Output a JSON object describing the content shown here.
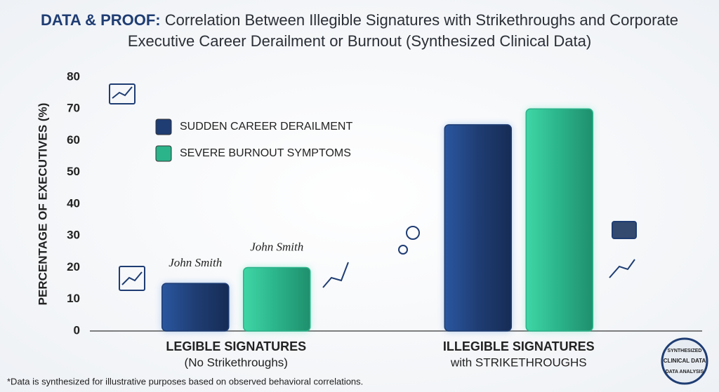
{
  "chart_data": {
    "type": "bar",
    "title_lead": "DATA & PROOF:",
    "title": "Correlation Between Illegible Signatures with Strikethroughs and Corporate Executive Career Derailment or Burnout (Synthesized Clinical Data)",
    "y_label": "PERCENTAGE OF EXECUTIVES (%)",
    "categories": [
      "LEGIBLE SIGNATURES",
      "ILLEGIBLE SIGNATURES"
    ],
    "category_sublabels": [
      "(No Strikethroughs)",
      "with STRIKETHROUGHS"
    ],
    "series": [
      {
        "name": "SUDDEN CAREER DERAILMENT",
        "color": "#1f3d73",
        "values": [
          15,
          65
        ]
      },
      {
        "name": "SEVERE BURNOUT SYMPTOMS",
        "color": "#2bb38a",
        "values": [
          20,
          70
        ]
      }
    ],
    "ylim": [
      0,
      80
    ],
    "yticks": [
      0,
      10,
      20,
      30,
      40,
      50,
      60,
      70,
      80
    ],
    "grid": false,
    "annotations": [
      "John Smith",
      "John Smith"
    ],
    "badge": [
      "SYNTHESIZED",
      "CLINICAL DATA",
      "DATA ANALYSIS"
    ],
    "footnote": "*Data is synthesized for illustrative purposes based on observed behavioral correlations."
  }
}
